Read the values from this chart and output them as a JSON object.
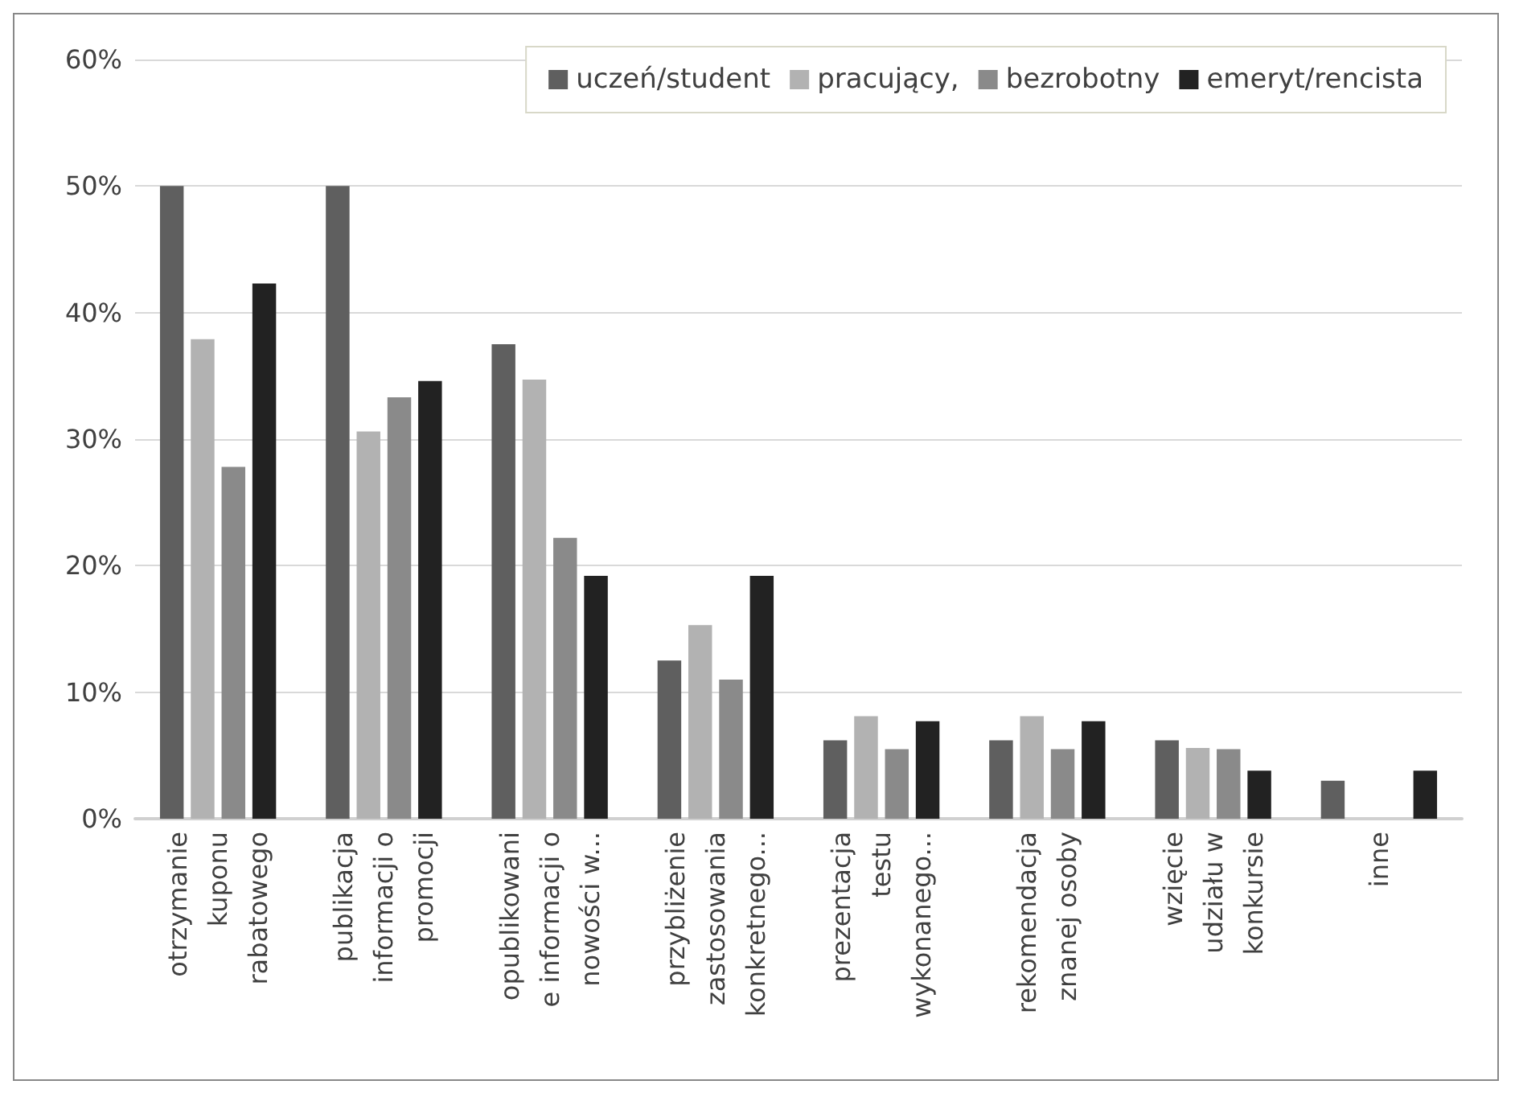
{
  "chart_data": {
    "type": "bar",
    "categories": [
      "otrzymanie\nkuponu\nrabatowego",
      "publikacja\ninformacji o\npromocji",
      "opublikowani\ne informacji o\nnowości w...",
      "przybliżenie\nzastosowania\nkonkretnego...",
      "prezentacja\ntestu\nwykonanego...",
      "rekomendacja\nznanej osoby",
      "wzięcie\nudziału w\nkonkursie",
      "inne"
    ],
    "series": [
      {
        "name": "uczeń/student",
        "color": "#5f5f5f",
        "values": [
          50,
          50,
          37.5,
          12.5,
          6.2,
          6.2,
          6.2,
          3.0
        ]
      },
      {
        "name": "pracujący,",
        "color": "#b2b2b2",
        "values": [
          37.9,
          30.6,
          34.7,
          15.3,
          8.1,
          8.1,
          5.6,
          null
        ]
      },
      {
        "name": "bezrobotny",
        "color": "#8a8a8a",
        "values": [
          27.8,
          33.3,
          22.2,
          11.0,
          5.5,
          5.5,
          5.5,
          null
        ]
      },
      {
        "name": "emeryt/rencista",
        "color": "#222222",
        "values": [
          42.3,
          34.6,
          19.2,
          19.2,
          7.7,
          7.7,
          3.8,
          3.8
        ]
      }
    ],
    "ylim": [
      0,
      60
    ],
    "yticks": [
      {
        "value": 0,
        "label": "0%"
      },
      {
        "value": 10,
        "label": "10%"
      },
      {
        "value": 20,
        "label": "20%"
      },
      {
        "value": 30,
        "label": "30%"
      },
      {
        "value": 40,
        "label": "40%"
      },
      {
        "value": 50,
        "label": "50%"
      },
      {
        "value": 60,
        "label": "60%"
      }
    ],
    "grid": "y",
    "legend": "top right"
  }
}
